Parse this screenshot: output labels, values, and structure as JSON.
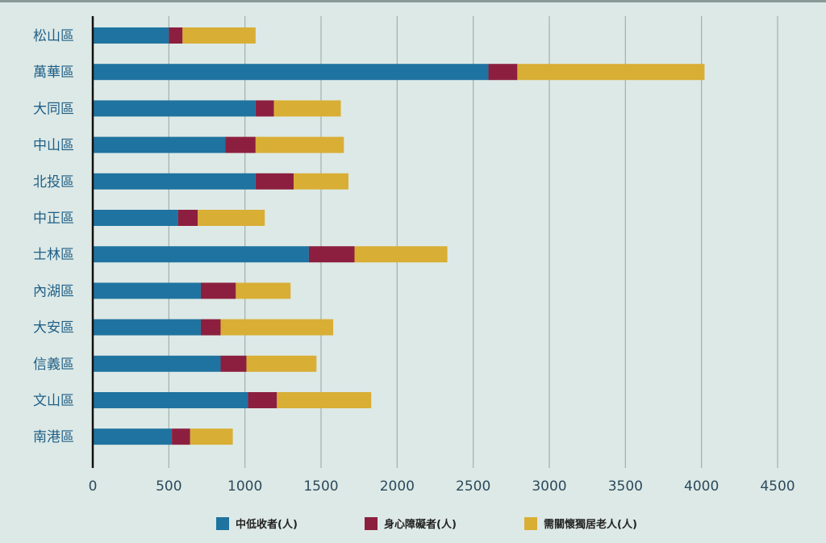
{
  "chart_data": {
    "type": "bar",
    "orientation": "horizontal",
    "stacked": true,
    "categories": [
      "松山區",
      "萬華區",
      "大同區",
      "中山區",
      "北投區",
      "中正區",
      "士林區",
      "內湖區",
      "大安區",
      "信義區",
      "文山區",
      "南港區"
    ],
    "series": [
      {
        "name": "中低收者(人)",
        "color": "#1f73a0",
        "values": [
          500,
          2600,
          1070,
          870,
          1070,
          560,
          1420,
          710,
          710,
          840,
          1020,
          520
        ]
      },
      {
        "name": "身心障礙者(人)",
        "color": "#8c1f3f",
        "values": [
          90,
          190,
          120,
          200,
          250,
          130,
          300,
          230,
          130,
          170,
          190,
          120
        ]
      },
      {
        "name": "需關懷獨居老人(人)",
        "color": "#d9ae35",
        "values": [
          480,
          1230,
          440,
          580,
          360,
          440,
          610,
          360,
          740,
          460,
          620,
          280
        ]
      }
    ],
    "x_ticks": [
      "0",
      "500",
      "1000",
      "1500",
      "2000",
      "2500",
      "3000",
      "3500",
      "4000",
      "4500"
    ],
    "xlim": [
      0,
      4500
    ],
    "grid": true,
    "legend_position": "bottom",
    "title": "",
    "xlabel": "",
    "ylabel": ""
  }
}
